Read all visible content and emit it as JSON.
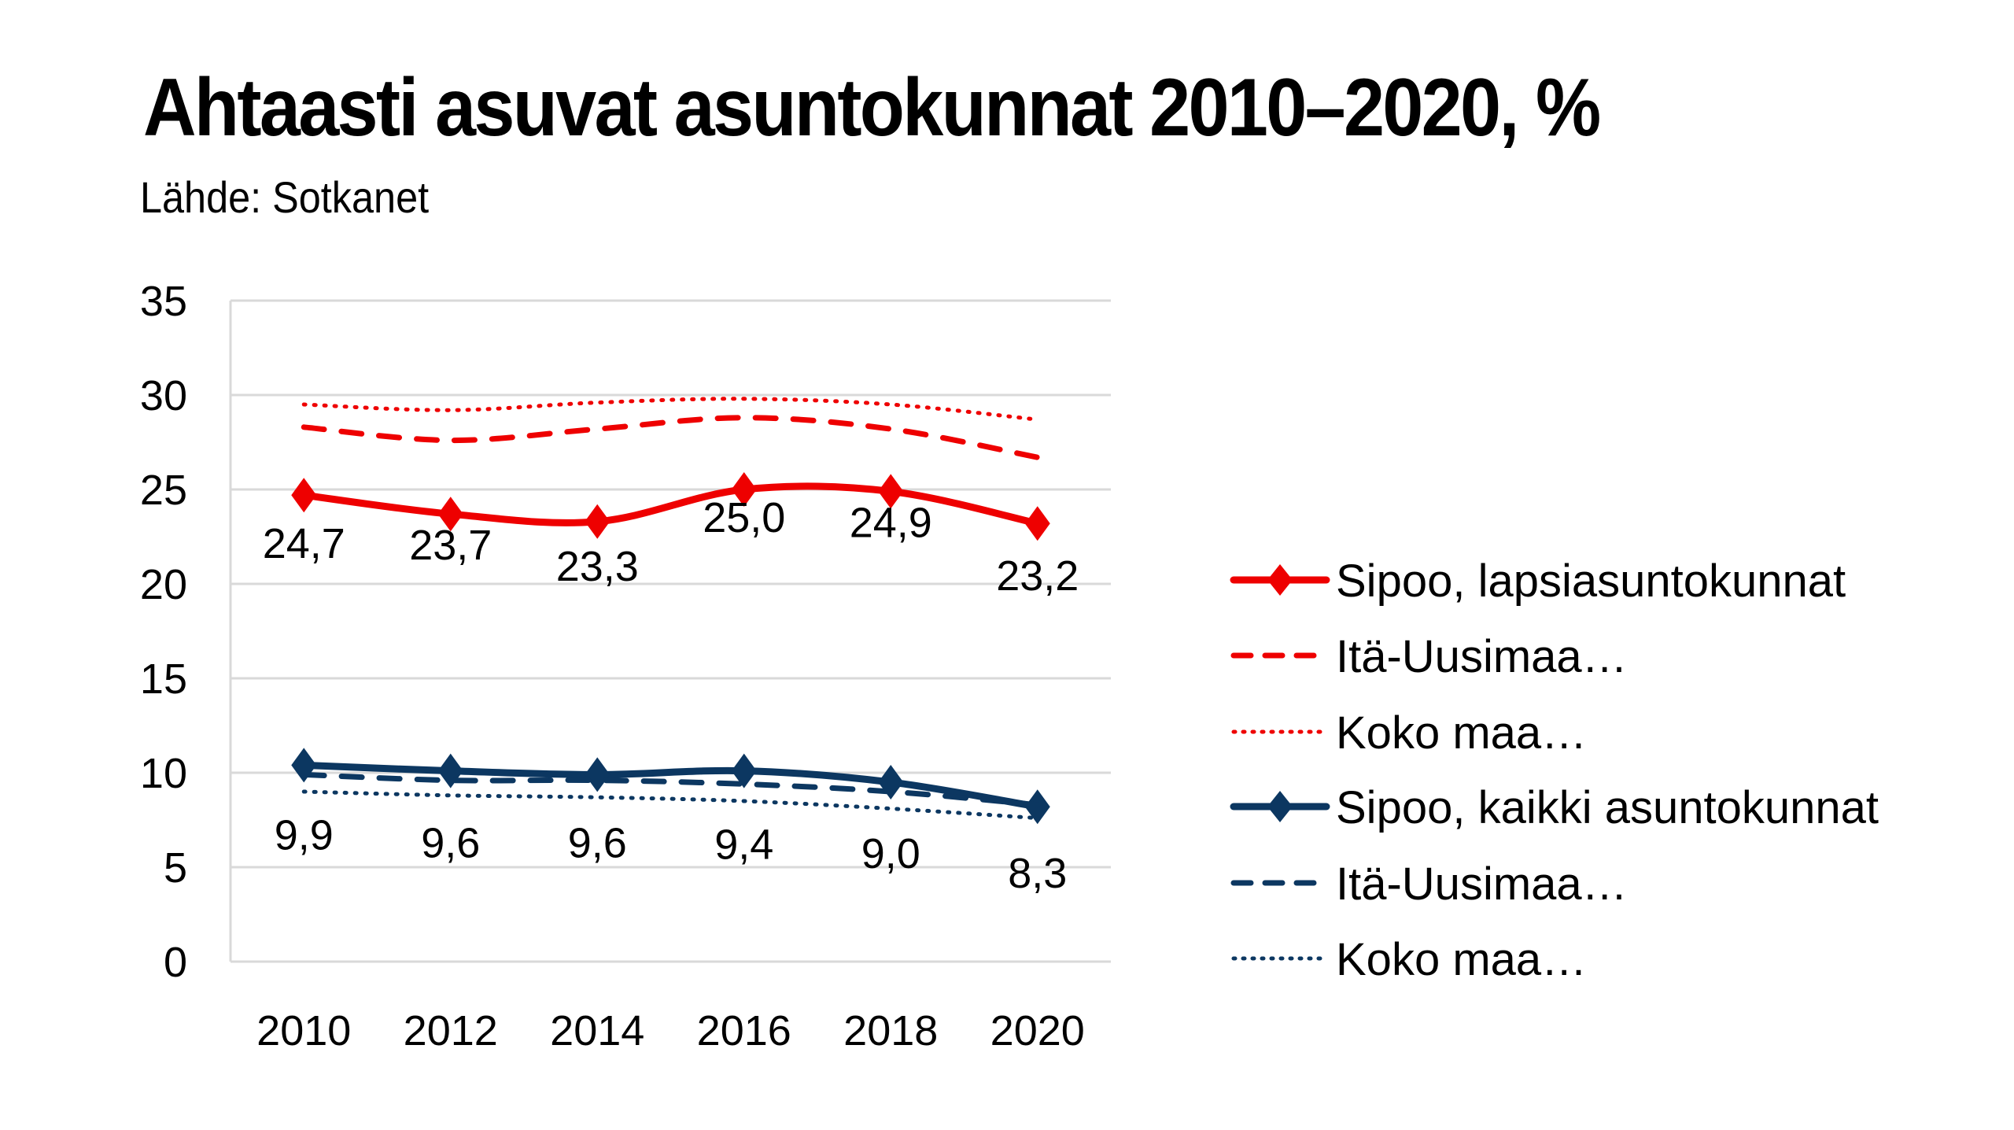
{
  "title": "Ahtaasti asuvat asuntokunnat 2010–2020, %",
  "subtitle": "Lähde: Sotkanet",
  "chart_data": {
    "type": "line",
    "title": "Ahtaasti asuvat asuntokunnat 2010–2020, %",
    "subtitle": "Lähde: Sotkanet",
    "xlabel": "",
    "ylabel": "",
    "categories": [
      "2010",
      "2012",
      "2014",
      "2016",
      "2018",
      "2020"
    ],
    "ylim": [
      0,
      35
    ],
    "yticks": [
      "0",
      "5",
      "10",
      "15",
      "20",
      "25",
      "30",
      "35"
    ],
    "ytick_values": [
      0,
      5,
      10,
      15,
      20,
      25,
      30,
      35
    ],
    "grid": true,
    "legend_position": "right",
    "series": [
      {
        "name": "Sipoo, lapsiasuntokunnat",
        "color": "#ee0000",
        "style": "solid",
        "marker": "diamond",
        "values": [
          24.7,
          23.7,
          23.3,
          25.0,
          24.9,
          23.2
        ]
      },
      {
        "name": "Itä-Uusimaa…",
        "color": "#ee0000",
        "style": "dashed",
        "marker": "none",
        "values": [
          28.3,
          27.6,
          28.2,
          28.8,
          28.2,
          26.7
        ]
      },
      {
        "name": "Koko maa…",
        "color": "#ee0000",
        "style": "dotted",
        "marker": "none",
        "values": [
          29.5,
          29.2,
          29.6,
          29.8,
          29.5,
          28.7
        ]
      },
      {
        "name": "Sipoo, kaikki asuntokunnat",
        "color": "#0c3761",
        "style": "solid",
        "marker": "diamond",
        "values": [
          10.4,
          10.1,
          9.9,
          10.1,
          9.5,
          8.2
        ]
      },
      {
        "name": "Itä-Uusimaa…",
        "color": "#0c3761",
        "style": "dashed",
        "marker": "none",
        "values": [
          9.9,
          9.6,
          9.6,
          9.4,
          9.0,
          8.3
        ]
      },
      {
        "name": "Koko maa…",
        "color": "#0c3761",
        "style": "dotted",
        "marker": "none",
        "values": [
          9.0,
          8.8,
          8.7,
          8.5,
          8.1,
          7.6
        ]
      }
    ],
    "data_labels": [
      {
        "values": [
          24.7,
          23.7,
          23.3,
          25.0,
          24.9,
          23.2
        ],
        "text": [
          "24,7",
          "23,7",
          "23,3",
          "25,0",
          "24,9",
          "23,2"
        ]
      },
      {
        "values": [
          9.9,
          9.6,
          9.6,
          9.4,
          9.0,
          8.3
        ],
        "text": [
          "9,9",
          "9,6",
          "9,6",
          "9,4",
          "9,0",
          "8,3"
        ]
      }
    ]
  }
}
